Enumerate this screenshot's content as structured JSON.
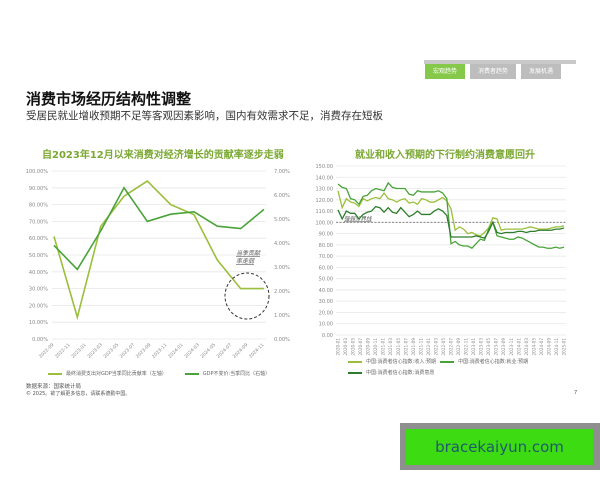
{
  "tabs": [
    {
      "label": "宏观趋势",
      "active": true
    },
    {
      "label": "消费者趋势",
      "active": false
    },
    {
      "label": "发展机遇",
      "active": false
    }
  ],
  "header": {
    "title": "消费市场经历结构性调整",
    "subtitle": "受居民就业增收预期不足等客观因素影响，国内有效需求不足，消费存在短板"
  },
  "left_chart": {
    "title": "自2023年12月以来消费对经济增长的贡献率逐步走弱",
    "annotation": "当季贡献率走弱",
    "legend": [
      {
        "label": "最终消费支出对GDP当季同比贡献率（左轴）",
        "color": "#9bbf3a"
      },
      {
        "label": "GDP不变价:当季同比（右轴）",
        "color": "#4aa33a"
      }
    ]
  },
  "right_chart": {
    "title": "就业和收入预期的下行制约消费意愿回升",
    "annotation": "强弱分界线",
    "legend": [
      {
        "label": "中国:消费者信心指数:收入:预期",
        "color": "#9bbf3a"
      },
      {
        "label": "中国:消费者信心指数:就业:预期",
        "color": "#4aa33a"
      },
      {
        "label": "中国:消费者信心指数:消费意愿",
        "color": "#2e7d2e"
      }
    ]
  },
  "footer": {
    "source": "数据来源：国家统计局",
    "copyright": "© 2025。欲了解更多信息，请联系德勤中国。",
    "page_number": "7"
  },
  "watermark": {
    "text": "bracekaiyun.com"
  },
  "chart_data": [
    {
      "type": "line",
      "title": "自2023年12月以来消费对经济增长的贡献率逐步走弱",
      "x": [
        "2022-09",
        "2022-11",
        "2023-01",
        "2023-03",
        "2023-05",
        "2023-07",
        "2023-09",
        "2023-11",
        "2024-01",
        "2024-03",
        "2024-05",
        "2024-07",
        "2024-09",
        "2024-11"
      ],
      "point_x": [
        "2022-09",
        "2022-12",
        "2023-03",
        "2023-06",
        "2023-09",
        "2023-12",
        "2024-03",
        "2024-06",
        "2024-09",
        "2024-12"
      ],
      "series": [
        {
          "name": "最终消费支出对GDP当季同比贡献率（左轴）",
          "axis": "left",
          "values": [
            61,
            13,
            67,
            85,
            94,
            80,
            74,
            47,
            30,
            30
          ]
        },
        {
          "name": "GDP不变价:当季同比（右轴）",
          "axis": "right",
          "values": [
            3.9,
            2.9,
            4.5,
            6.3,
            4.9,
            5.2,
            5.3,
            4.7,
            4.6,
            5.4
          ]
        }
      ],
      "y_left": {
        "ticks": [
          "0.00%",
          "10.00%",
          "20.00%",
          "30.00%",
          "40.00%",
          "50.00%",
          "60.00%",
          "70.00%",
          "80.00%",
          "90.00%",
          "100.00%"
        ],
        "range": [
          0,
          100
        ]
      },
      "y_right": {
        "ticks": [
          "0.00%",
          "1.00%",
          "2.00%",
          "3.00%",
          "4.00%",
          "5.00%",
          "6.00%",
          "7.00%"
        ],
        "range": [
          0,
          7
        ]
      },
      "annotation": "当季贡献率走弱",
      "grid": true,
      "legend_position": "bottom"
    },
    {
      "type": "line",
      "title": "就业和收入预期的下行制约消费意愿回升",
      "x": [
        "2020-01",
        "2020-03",
        "2020-05",
        "2020-07",
        "2020-09",
        "2020-11",
        "2021-01",
        "2021-03",
        "2021-05",
        "2021-07",
        "2021-09",
        "2021-11",
        "2022-01",
        "2022-03",
        "2022-05",
        "2022-07",
        "2022-09",
        "2022-11",
        "2023-01",
        "2023-03",
        "2023-05",
        "2023-07",
        "2023-09",
        "2023-11",
        "2024-01",
        "2024-03",
        "2024-05",
        "2024-07",
        "2024-09",
        "2024-11",
        "2025-01"
      ],
      "series": [
        {
          "name": "中国:消费者信心指数:收入:预期",
          "values": [
            128,
            113,
            121,
            118,
            117,
            114,
            121,
            119,
            121,
            122,
            121,
            126,
            121,
            120,
            118,
            120,
            121,
            117,
            118,
            116,
            121,
            120,
            118,
            118,
            120,
            122,
            119,
            112,
            93,
            96,
            94,
            90,
            91,
            89,
            88,
            91,
            95,
            104,
            103,
            93,
            94,
            94,
            94,
            94,
            94,
            95,
            96,
            95,
            94,
            94,
            94,
            95,
            96,
            96,
            97
          ]
        },
        {
          "name": "中国:消费者信心指数:就业:预期",
          "values": [
            134,
            131,
            130,
            121,
            120,
            116,
            123,
            124,
            128,
            130,
            129,
            128,
            135,
            131,
            130,
            130,
            130,
            125,
            124,
            128,
            127,
            127,
            127,
            127,
            128,
            126,
            121,
            81,
            83,
            80,
            79,
            79,
            77,
            81,
            85,
            84,
            94,
            100,
            88,
            87,
            86,
            85,
            85,
            87,
            86,
            84,
            82,
            80,
            78,
            78,
            77,
            77,
            78,
            77,
            78
          ]
        },
        {
          "name": "中国:消费者信心指数:消费意愿",
          "values": [
            111,
            103,
            110,
            108,
            108,
            103,
            107,
            109,
            110,
            114,
            113,
            109,
            113,
            109,
            108,
            113,
            109,
            105,
            107,
            110,
            107,
            107,
            107,
            110,
            112,
            110,
            106,
            87,
            87,
            87,
            87,
            87,
            87,
            88,
            87,
            86,
            92,
            100,
            91,
            90,
            91,
            91,
            91,
            92,
            92,
            91,
            92,
            92,
            93,
            93,
            93,
            93,
            94,
            94,
            95
          ]
        }
      ],
      "y": {
        "ticks": [
          "0.00",
          "10.00",
          "20.00",
          "30.00",
          "40.00",
          "50.00",
          "60.00",
          "70.00",
          "80.00",
          "90.00",
          "100.00",
          "110.00",
          "120.00",
          "130.00",
          "140.00",
          "150.00"
        ],
        "range": [
          0,
          150
        ]
      },
      "reference_line": {
        "value": 100,
        "label": "强弱分界线",
        "style": "dashed"
      },
      "grid": true,
      "legend_position": "bottom"
    }
  ]
}
